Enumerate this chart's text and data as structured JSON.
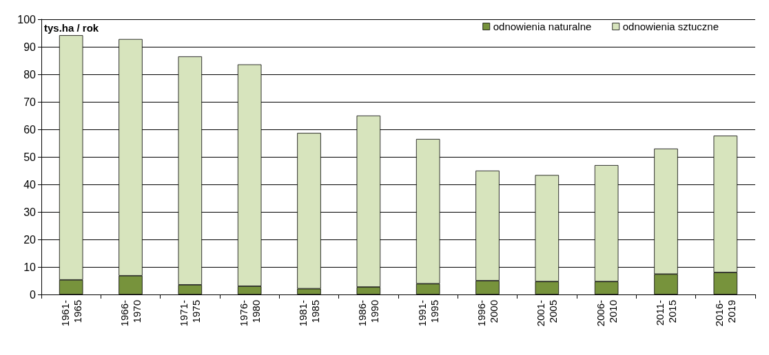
{
  "chart_data": {
    "type": "bar",
    "stacked": true,
    "ylabel": "tys.ha / rok",
    "categories": [
      "1961-\n1965",
      "1966-\n1970",
      "1971-\n1975",
      "1976-\n1980",
      "1981-\n1985",
      "1986-\n1990",
      "1991-\n1995",
      "1996-\n2000",
      "2001-\n2005",
      "2006-\n2010",
      "2011-\n2015",
      "2016-\n2019"
    ],
    "series": [
      {
        "name": "odnowienia naturalne",
        "color": "#77933c",
        "values": [
          5.3,
          6.8,
          3.5,
          3,
          2.1,
          2.7,
          3.9,
          5,
          4.7,
          4.7,
          7.4,
          8
        ]
      },
      {
        "name": "odnowienia sztuczne",
        "color": "#d7e4bd",
        "values": [
          88.9,
          86,
          83,
          80.6,
          56.6,
          62.3,
          52.6,
          40,
          38.7,
          42.3,
          45.6,
          49.7
        ]
      }
    ],
    "ylim": [
      0,
      100
    ],
    "yticks": [
      0,
      10,
      20,
      30,
      40,
      50,
      60,
      70,
      80,
      90,
      100
    ],
    "grid": "y",
    "legend": "top right"
  }
}
